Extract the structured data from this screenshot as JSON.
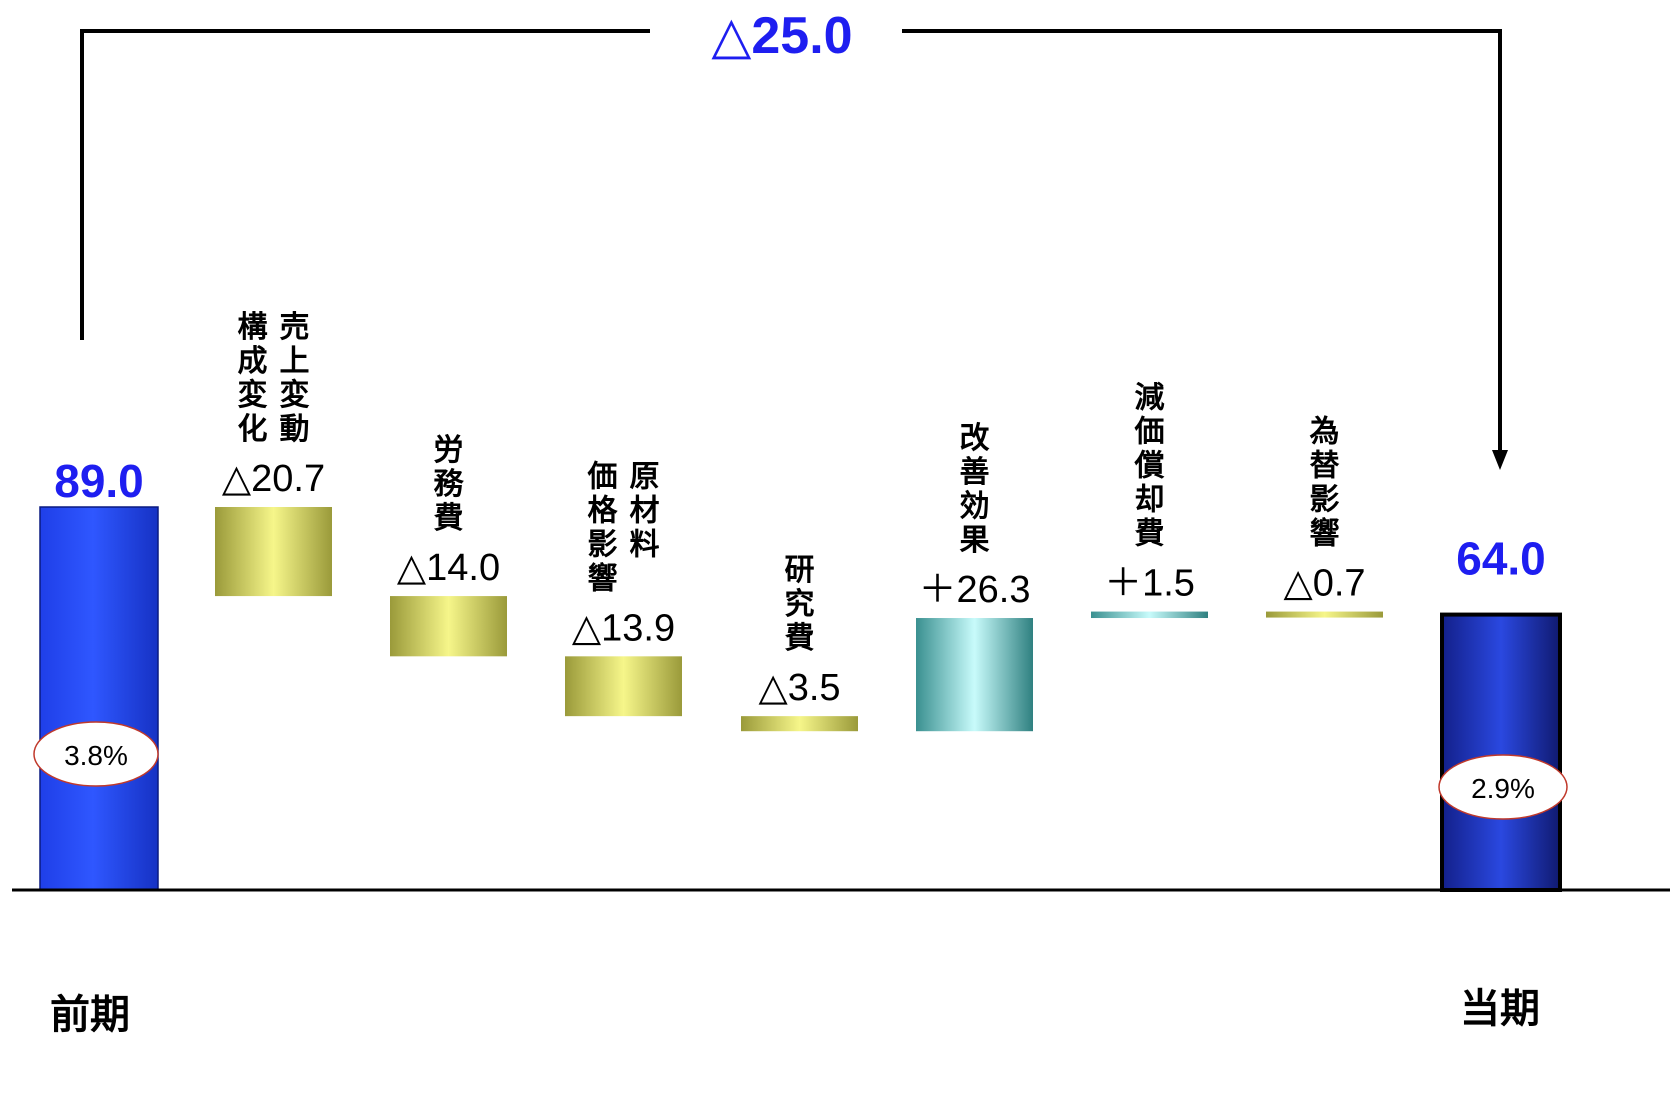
{
  "colors": {
    "total_bar": "#2f57ff",
    "decrease_bar": "#f6f68a",
    "increase_bar": "#c8fbfb",
    "total_label": "#1e1ef0",
    "change_label": "#000000",
    "ellipse_border": "#c0392b"
  },
  "chart_data": {
    "type": "bar",
    "subtype": "waterfall",
    "total_change_label": "△25.0",
    "start": {
      "label": "前期",
      "value": 89.0,
      "value_text": "89.0",
      "ratio": "3.8%"
    },
    "end": {
      "label": "当期",
      "value": 64.0,
      "value_text": "64.0",
      "ratio": "2.9%"
    },
    "steps": [
      {
        "category": [
          "売上変動",
          "構成変化"
        ],
        "delta": -20.7,
        "label": "△20.7",
        "kind": "decrease"
      },
      {
        "category": [
          "労務費"
        ],
        "delta": -14.0,
        "label": "△14.0",
        "kind": "decrease"
      },
      {
        "category": [
          "原材料",
          "価格影響"
        ],
        "delta": -13.9,
        "label": "△13.9",
        "kind": "decrease"
      },
      {
        "category": [
          "研究費"
        ],
        "delta": -3.5,
        "label": "△3.5",
        "kind": "decrease"
      },
      {
        "category": [
          "改善効果"
        ],
        "delta": 26.3,
        "label": "＋26.3",
        "kind": "increase"
      },
      {
        "category": [
          "減価償却費"
        ],
        "delta": 1.5,
        "label": "＋1.5",
        "kind": "increase"
      },
      {
        "category": [
          "為替影響"
        ],
        "delta": -0.7,
        "label": "△0.7",
        "kind": "decrease"
      }
    ]
  }
}
